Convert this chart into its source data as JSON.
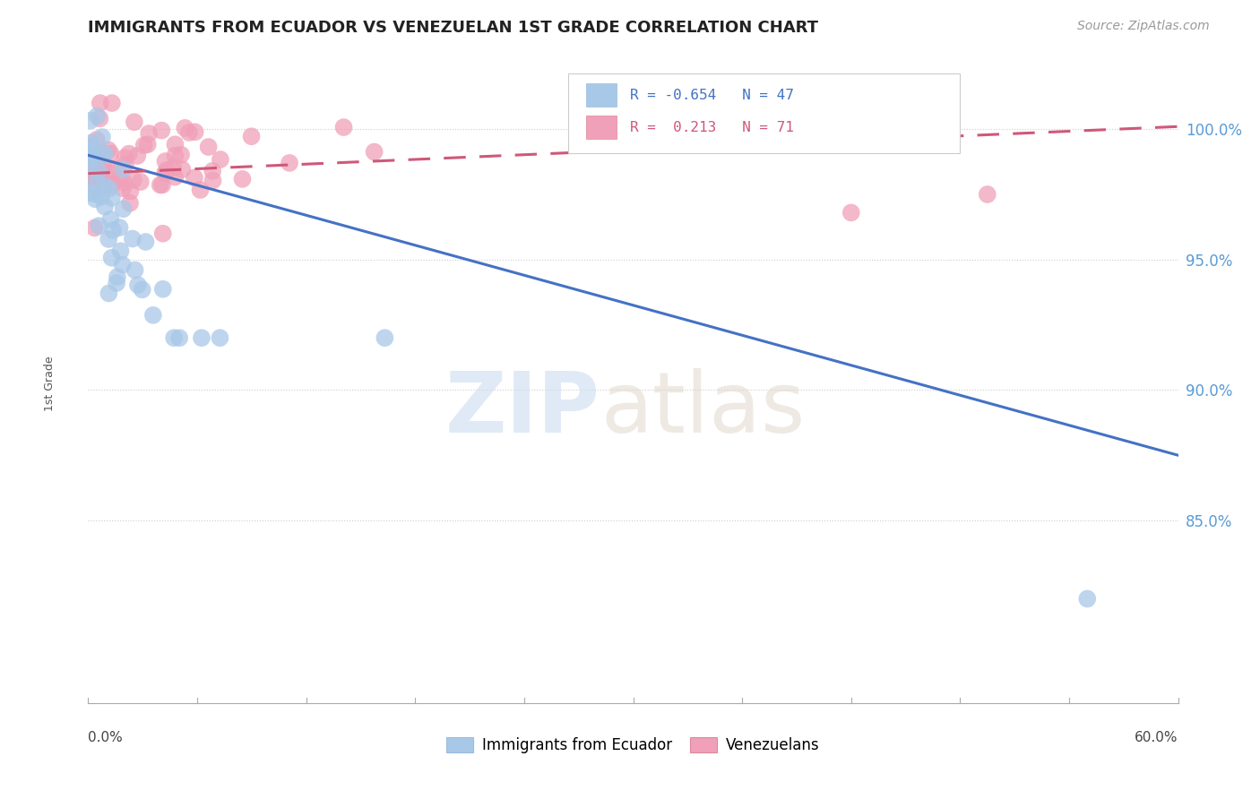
{
  "title": "IMMIGRANTS FROM ECUADOR VS VENEZUELAN 1ST GRADE CORRELATION CHART",
  "source_text": "Source: ZipAtlas.com",
  "ylabel": "1st Grade",
  "xmin": 0.0,
  "xmax": 0.6,
  "ymin": 0.78,
  "ymax": 1.025,
  "right_yticks": [
    0.85,
    0.9,
    0.95,
    1.0
  ],
  "right_yticklabels": [
    "85.0%",
    "90.0%",
    "95.0%",
    "100.0%"
  ],
  "ecuador_R": -0.654,
  "ecuador_N": 47,
  "venezuela_R": 0.213,
  "venezuela_N": 71,
  "ecuador_color": "#a8c8e8",
  "venezuela_color": "#f0a0b8",
  "ecuador_line_color": "#4472c4",
  "venezuela_line_color": "#d05878",
  "legend_label_ecuador": "Immigrants from Ecuador",
  "legend_label_venezuela": "Venezuelans",
  "background_color": "#ffffff",
  "ecuador_line_y0": 0.99,
  "ecuador_line_y1": 0.875,
  "venezuela_line_y0": 0.983,
  "venezuela_line_y1": 1.001,
  "watermark_zip_color": "#ccddf0",
  "watermark_atlas_color": "#e0d8cc"
}
